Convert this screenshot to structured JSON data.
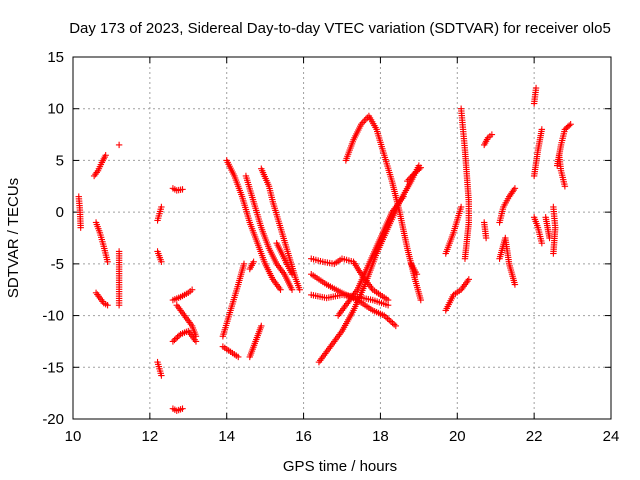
{
  "chart_data": {
    "type": "scatter",
    "title": "Day 173 of 2023, Sidereal Day-to-day VTEC variation (SDTVAR) for receiver olo5",
    "xlabel": "GPS time / hours",
    "ylabel": "SDTVAR / TECUs",
    "xlim": [
      10,
      24
    ],
    "ylim": [
      -20,
      15
    ],
    "xticks": [
      "10",
      "12",
      "14",
      "16",
      "18",
      "20",
      "22",
      "24"
    ],
    "yticks": [
      "15",
      "10",
      "5",
      "0",
      "-5",
      "-10",
      "-15",
      "-20"
    ],
    "grid": true,
    "marker": "+",
    "color": "#ff0000",
    "segments": [
      [
        [
          10.15,
          1.5
        ],
        [
          10.18,
          0.2
        ],
        [
          10.2,
          -1.5
        ]
      ],
      [
        [
          10.55,
          3.5
        ],
        [
          10.65,
          4.0
        ],
        [
          10.75,
          4.8
        ],
        [
          10.85,
          5.5
        ]
      ],
      [
        [
          10.6,
          -1.0
        ],
        [
          10.7,
          -2.0
        ],
        [
          10.8,
          -3.3
        ],
        [
          10.9,
          -4.8
        ]
      ],
      [
        [
          10.6,
          -7.8
        ],
        [
          10.7,
          -8.3
        ],
        [
          10.8,
          -8.8
        ],
        [
          10.9,
          -9.0
        ]
      ],
      [
        [
          11.2,
          6.5
        ]
      ],
      [
        [
          11.2,
          -3.8
        ],
        [
          11.2,
          -6.8
        ],
        [
          11.2,
          -9.0
        ]
      ],
      [
        [
          12.2,
          -0.8
        ],
        [
          12.3,
          0.5
        ]
      ],
      [
        [
          12.2,
          -3.8
        ],
        [
          12.3,
          -4.8
        ]
      ],
      [
        [
          12.2,
          -14.5
        ],
        [
          12.3,
          -15.8
        ]
      ],
      [
        [
          12.6,
          -19.0
        ],
        [
          12.7,
          -19.2
        ],
        [
          12.85,
          -19.0
        ]
      ],
      [
        [
          12.6,
          2.3
        ],
        [
          12.7,
          2.1
        ],
        [
          12.85,
          2.2
        ]
      ],
      [
        [
          12.6,
          -8.5
        ],
        [
          12.8,
          -8.2
        ],
        [
          13.0,
          -7.8
        ],
        [
          13.1,
          -7.5
        ]
      ],
      [
        [
          12.6,
          -12.5
        ],
        [
          12.8,
          -11.8
        ],
        [
          13.0,
          -11.5
        ],
        [
          13.2,
          -12.5
        ]
      ],
      [
        [
          12.7,
          -9.0
        ],
        [
          12.9,
          -10.0
        ],
        [
          13.1,
          -11.0
        ],
        [
          13.2,
          -12.0
        ]
      ],
      [
        [
          13.9,
          -12.0
        ],
        [
          14.1,
          -9.5
        ],
        [
          14.3,
          -7.0
        ],
        [
          14.45,
          -5.0
        ]
      ],
      [
        [
          13.9,
          -13.0
        ],
        [
          14.1,
          -13.5
        ],
        [
          14.3,
          -14.0
        ]
      ],
      [
        [
          14.0,
          5.0
        ],
        [
          14.2,
          3.5
        ],
        [
          14.4,
          1.5
        ],
        [
          14.6,
          -1.0
        ],
        [
          14.8,
          -3.0
        ],
        [
          15.0,
          -5.0
        ],
        [
          15.2,
          -6.5
        ],
        [
          15.4,
          -7.5
        ]
      ],
      [
        [
          14.5,
          3.5
        ],
        [
          14.7,
          1.0
        ],
        [
          14.9,
          -1.5
        ],
        [
          15.1,
          -3.5
        ],
        [
          15.3,
          -5.0
        ],
        [
          15.5,
          -6.0
        ],
        [
          15.7,
          -7.5
        ]
      ],
      [
        [
          14.9,
          4.2
        ],
        [
          15.1,
          2.5
        ],
        [
          15.2,
          1.0
        ],
        [
          15.4,
          -1.5
        ],
        [
          15.6,
          -4.0
        ],
        [
          15.8,
          -6.5
        ],
        [
          15.9,
          -7.5
        ]
      ],
      [
        [
          14.6,
          -14.0
        ],
        [
          14.75,
          -12.5
        ],
        [
          14.9,
          -11.0
        ]
      ],
      [
        [
          14.6,
          -5.5
        ],
        [
          14.7,
          -4.8
        ]
      ],
      [
        [
          15.3,
          -3.0
        ],
        [
          15.5,
          -4.5
        ],
        [
          15.7,
          -6.0
        ]
      ],
      [
        [
          16.2,
          -4.5
        ],
        [
          16.5,
          -4.8
        ],
        [
          16.8,
          -5.0
        ],
        [
          17.0,
          -4.5
        ],
        [
          17.3,
          -4.8
        ],
        [
          17.5,
          -6.0
        ],
        [
          17.8,
          -7.5
        ],
        [
          18.2,
          -8.5
        ]
      ],
      [
        [
          16.2,
          -6.0
        ],
        [
          16.6,
          -7.0
        ],
        [
          17.0,
          -7.8
        ],
        [
          17.4,
          -8.5
        ],
        [
          17.8,
          -9.5
        ],
        [
          18.1,
          -10.0
        ],
        [
          18.4,
          -11.0
        ]
      ],
      [
        [
          16.2,
          -8.0
        ],
        [
          16.6,
          -8.3
        ],
        [
          17.0,
          -8.0
        ],
        [
          17.4,
          -8.2
        ],
        [
          17.8,
          -8.5
        ],
        [
          18.2,
          -9.0
        ]
      ],
      [
        [
          16.4,
          -14.5
        ],
        [
          16.7,
          -13.0
        ],
        [
          17.0,
          -11.5
        ],
        [
          17.3,
          -9.5
        ],
        [
          17.6,
          -7.0
        ],
        [
          17.9,
          -4.0
        ],
        [
          18.2,
          -1.5
        ],
        [
          18.5,
          1.0
        ],
        [
          18.8,
          3.0
        ],
        [
          19.0,
          4.5
        ]
      ],
      [
        [
          16.9,
          -10.0
        ],
        [
          17.1,
          -9.0
        ],
        [
          17.4,
          -7.5
        ],
        [
          17.7,
          -5.0
        ],
        [
          18.0,
          -2.5
        ],
        [
          18.3,
          0.0
        ],
        [
          18.6,
          1.5
        ]
      ],
      [
        [
          17.1,
          5.0
        ],
        [
          17.3,
          7.0
        ],
        [
          17.5,
          8.5
        ],
        [
          17.7,
          9.3
        ],
        [
          17.9,
          8.0
        ],
        [
          18.1,
          5.5
        ],
        [
          18.3,
          3.0
        ],
        [
          18.5,
          0.0
        ],
        [
          18.7,
          -3.5
        ],
        [
          18.9,
          -6.5
        ],
        [
          19.05,
          -8.5
        ]
      ],
      [
        [
          18.7,
          3.0
        ],
        [
          18.9,
          3.8
        ],
        [
          19.05,
          4.3
        ]
      ],
      [
        [
          18.8,
          -5.0
        ],
        [
          18.95,
          -6.0
        ]
      ],
      [
        [
          19.7,
          -4.0
        ],
        [
          19.9,
          -2.0
        ],
        [
          20.1,
          0.5
        ]
      ],
      [
        [
          19.7,
          -9.5
        ],
        [
          19.9,
          -8.0
        ],
        [
          20.1,
          -7.5
        ],
        [
          20.3,
          -6.5
        ]
      ],
      [
        [
          20.1,
          10.0
        ],
        [
          20.15,
          8.0
        ],
        [
          20.2,
          6.0
        ],
        [
          20.25,
          3.5
        ],
        [
          20.3,
          1.0
        ],
        [
          20.3,
          -1.0
        ],
        [
          20.2,
          -4.5
        ]
      ],
      [
        [
          20.7,
          -1.0
        ],
        [
          20.75,
          -2.5
        ]
      ],
      [
        [
          20.7,
          6.5
        ],
        [
          20.8,
          7.2
        ],
        [
          20.9,
          7.5
        ]
      ],
      [
        [
          21.1,
          -1.0
        ],
        [
          21.2,
          0.5
        ],
        [
          21.35,
          1.5
        ],
        [
          21.5,
          2.3
        ]
      ],
      [
        [
          21.1,
          -4.5
        ],
        [
          21.25,
          -2.5
        ],
        [
          21.35,
          -5.0
        ],
        [
          21.5,
          -7.0
        ]
      ],
      [
        [
          22.0,
          10.5
        ],
        [
          22.05,
          12.0
        ]
      ],
      [
        [
          22.0,
          3.5
        ],
        [
          22.1,
          6.0
        ],
        [
          22.2,
          8.0
        ]
      ],
      [
        [
          22.0,
          -0.5
        ],
        [
          22.1,
          -1.5
        ],
        [
          22.2,
          -3.0
        ]
      ],
      [
        [
          22.3,
          -0.5
        ],
        [
          22.4,
          -2.5
        ]
      ],
      [
        [
          22.5,
          0.5
        ],
        [
          22.55,
          -1.5
        ],
        [
          22.5,
          -4.0
        ]
      ],
      [
        [
          22.6,
          4.5
        ],
        [
          22.7,
          6.5
        ],
        [
          22.8,
          8.0
        ],
        [
          22.95,
          8.5
        ]
      ],
      [
        [
          22.65,
          5.5
        ],
        [
          22.7,
          4.0
        ],
        [
          22.8,
          2.5
        ]
      ]
    ]
  }
}
